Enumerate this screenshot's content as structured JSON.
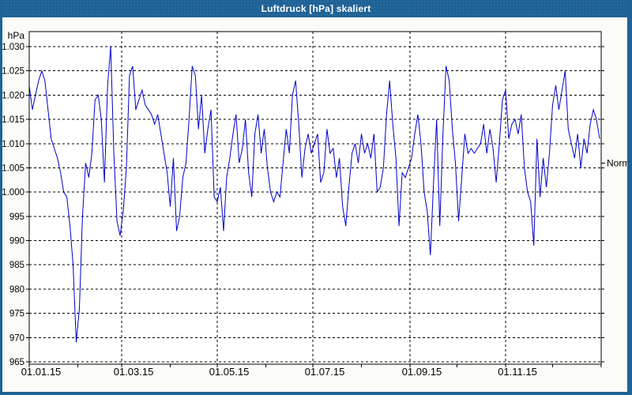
{
  "window": {
    "title": "Luftdruck [hPa] skaliert"
  },
  "colors": {
    "titlebar_bg": "#1e6296",
    "titlebar_text": "#ffffff",
    "window_border": "#1e6296",
    "content_bg": "#fbfbf7",
    "plot_bg": "#ffffff",
    "line": "#0000cc",
    "grid": "#000000",
    "axis": "#000000",
    "text": "#000000"
  },
  "chart_data": {
    "type": "line",
    "title": "Luftdruck [hPa] skaliert",
    "grid": "dashed",
    "legend": "none",
    "y_axis": {
      "unit": "hPa",
      "min": 965,
      "max": 1030,
      "tick_step": 5,
      "ticks": [
        {
          "label": "1.030",
          "value": 1030
        },
        {
          "label": "1.025",
          "value": 1025
        },
        {
          "label": "1.020",
          "value": 1020
        },
        {
          "label": "1.015",
          "value": 1015
        },
        {
          "label": "1.010",
          "value": 1010
        },
        {
          "label": "1.005",
          "value": 1005
        },
        {
          "label": "1.000",
          "value": 1000
        },
        {
          "label": "995",
          "value": 995
        },
        {
          "label": "990",
          "value": 990
        },
        {
          "label": "985",
          "value": 985
        },
        {
          "label": "980",
          "value": 980
        },
        {
          "label": "975",
          "value": 975
        },
        {
          "label": "970",
          "value": 970
        },
        {
          "label": "965",
          "value": 965
        }
      ]
    },
    "x_axis": {
      "days_total": 365,
      "labels": [
        {
          "label": "01.01.15",
          "day": 0
        },
        {
          "label": "01.03.15",
          "day": 59
        },
        {
          "label": "01.05.15",
          "day": 120
        },
        {
          "label": "01.07.15",
          "day": 181
        },
        {
          "label": "01.09.15",
          "day": 243
        },
        {
          "label": "01.11.15",
          "day": 304
        }
      ],
      "minor_tick_days": [
        0,
        31,
        59,
        90,
        120,
        151,
        181,
        212,
        243,
        273,
        304,
        334,
        365
      ],
      "gridline_days": [
        59,
        120,
        181,
        243,
        304
      ]
    },
    "annotations": [
      {
        "label": "Normal",
        "value": 1006,
        "side": "right"
      }
    ],
    "series": [
      {
        "name": "Luftdruck skaliert",
        "start_day": 0,
        "sample_interval_days": 2,
        "values": [
          1022,
          1017,
          1020,
          1023,
          1025,
          1023,
          1017,
          1011,
          1009,
          1007,
          1004,
          1000,
          999,
          993,
          985,
          969,
          976,
          995,
          1006,
          1003,
          1008,
          1019,
          1020,
          1015,
          1002,
          1022,
          1030,
          1008,
          994,
          991,
          996,
          1005,
          1024,
          1026,
          1017,
          1019,
          1021,
          1018,
          1017,
          1016,
          1014,
          1016,
          1012,
          1008,
          1004,
          997,
          1007,
          992,
          995,
          1003,
          1006,
          1015,
          1026,
          1024,
          1013,
          1020,
          1008,
          1013,
          1017,
          999,
          998,
          1001,
          992,
          1003,
          1007,
          1012,
          1016,
          1006,
          1009,
          1015,
          1004,
          999,
          1012,
          1016,
          1008,
          1013,
          1005,
          1000,
          998,
          1000,
          999,
          1006,
          1013,
          1008,
          1020,
          1023,
          1014,
          1003,
          1009,
          1012,
          1008,
          1010,
          1012,
          1002,
          1004,
          1013,
          1008,
          1009,
          1003,
          1007,
          997,
          993,
          1001,
          1008,
          1010,
          1006,
          1012,
          1008,
          1010,
          1007,
          1012,
          1000,
          1001,
          1005,
          1016,
          1023,
          1014,
          1007,
          993,
          1004,
          1003,
          1005,
          1007,
          1012,
          1016,
          1010,
          1000,
          996,
          987,
          1002,
          1015,
          993,
          1012,
          1026,
          1023,
          1013,
          1006,
          994,
          1003,
          1012,
          1008,
          1009,
          1008,
          1009,
          1010,
          1014,
          1008,
          1013,
          1009,
          1002,
          1010,
          1019,
          1021,
          1011,
          1014,
          1015,
          1012,
          1016,
          1005,
          1000,
          998,
          989,
          1011,
          999,
          1007,
          1001,
          1008,
          1018,
          1022,
          1017,
          1021,
          1025,
          1013,
          1010,
          1007,
          1012,
          1005,
          1011,
          1008,
          1014,
          1017,
          1015,
          1011
        ]
      }
    ]
  }
}
